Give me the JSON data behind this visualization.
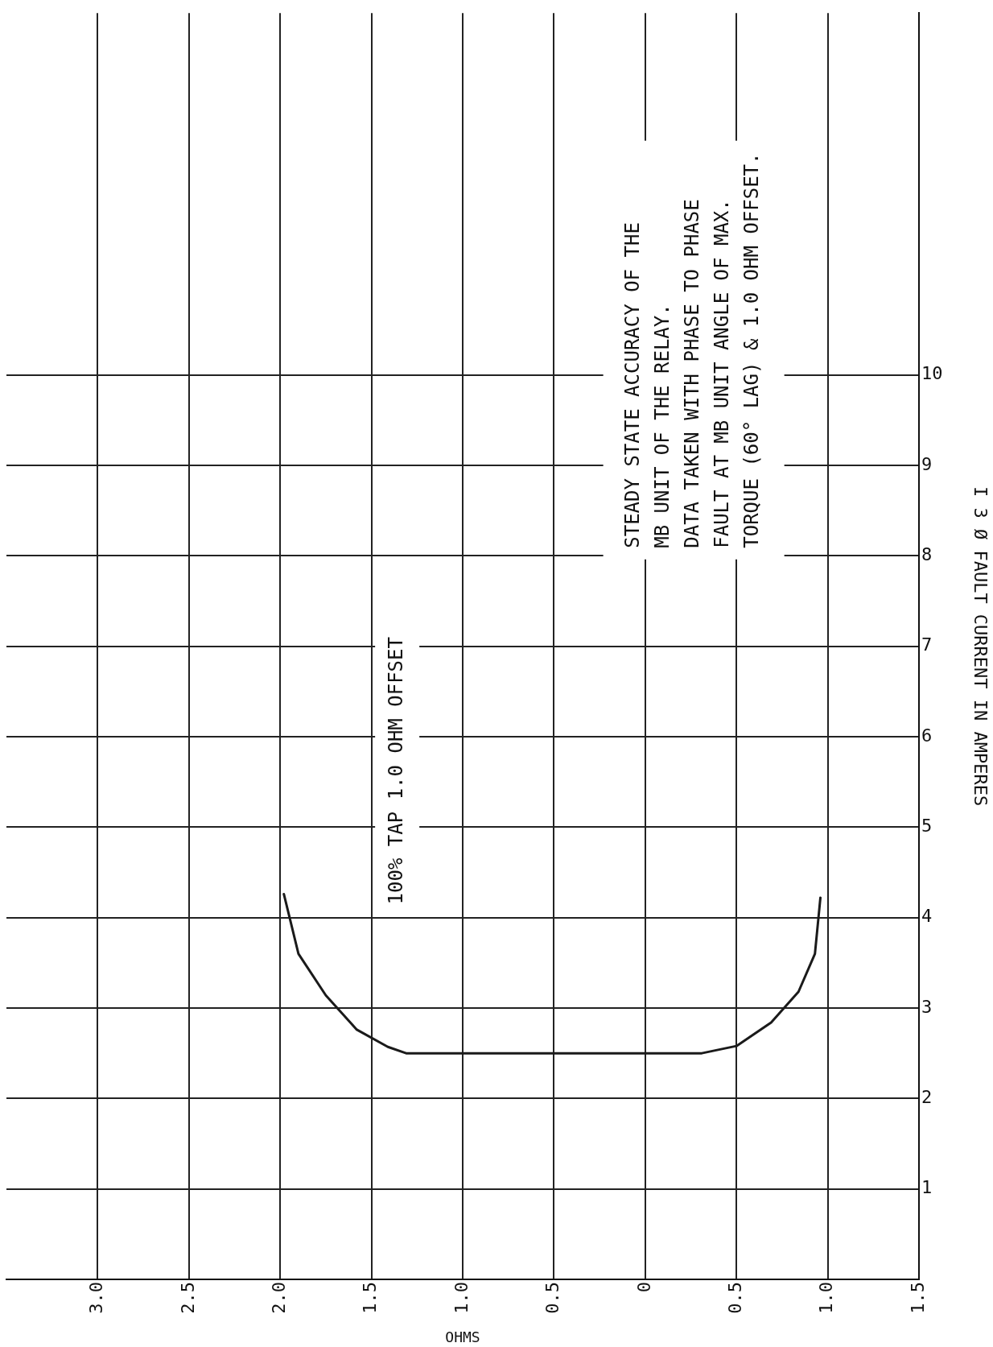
{
  "chart_data": {
    "type": "line",
    "xlabel": "OHMS",
    "ylabel": "I 3 Ø FAULT CURRENT IN AMPERES",
    "annotations": [
      "100% TAP 1.0 OHM OFFSET",
      "STEADY STATE ACCURACY OF THE\nMB UNIT OF THE RELAY.\nDATA TAKEN WITH PHASE TO PHASE\nFAULT AT MB UNIT ANGLE OF MAX.\nTORQUE (60° LAG) & 1.0 OHM OFFSET."
    ],
    "series": [
      {
        "color": "#1a1a1a",
        "x": [
          1.98,
          1.9,
          1.75,
          1.58,
          1.41,
          1.31,
          -0.31,
          -0.5,
          -0.69,
          -0.84,
          -0.93,
          -0.96
        ],
        "values": [
          4.26,
          3.6,
          3.14,
          2.76,
          2.57,
          2.5,
          2.5,
          2.58,
          2.84,
          3.18,
          3.6,
          4.22
        ]
      }
    ],
    "xlim": [
      3.5,
      -1.5
    ],
    "xticks": [
      {
        "value": 3,
        "label": "3.0"
      },
      {
        "value": 2.5,
        "label": "2.5"
      },
      {
        "value": 2,
        "label": "2.0"
      },
      {
        "value": 1.5,
        "label": "1.5"
      },
      {
        "value": 1,
        "label": "1.0"
      },
      {
        "value": 0.5,
        "label": "0.5"
      },
      {
        "value": 0,
        "label": "0"
      },
      {
        "value": -0.5,
        "label": "0.5"
      },
      {
        "value": -1,
        "label": "1.0"
      },
      {
        "value": -1.5,
        "label": "1.5"
      }
    ],
    "ylim": [
      0,
      14
    ],
    "yticks": [
      1,
      2,
      3,
      4,
      5,
      6,
      7,
      8,
      9,
      10
    ],
    "grid": true,
    "marker": "none"
  }
}
